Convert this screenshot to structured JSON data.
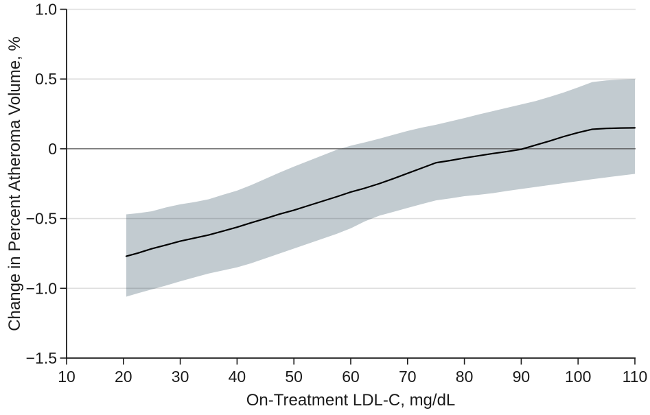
{
  "chart_data": {
    "type": "line",
    "xlabel": "On-Treatment LDL-C, mg/dL",
    "ylabel": "Change in Percent Atheroma Volume, %",
    "xlim": [
      10,
      110
    ],
    "ylim": [
      -1.5,
      1.0
    ],
    "x_tick_values": [
      10,
      20,
      30,
      40,
      50,
      60,
      70,
      80,
      90,
      100,
      110
    ],
    "x_tick_labels": [
      "10",
      "20",
      "30",
      "40",
      "50",
      "60",
      "70",
      "80",
      "90",
      "100",
      "110"
    ],
    "y_tick_values": [
      1.0,
      0.5,
      0,
      -0.5,
      -1.0,
      -1.5
    ],
    "y_tick_labels": [
      "1.0",
      "0.5",
      "0",
      "−0.5",
      "−1.0",
      "−1.5"
    ],
    "gridline_values": [
      1.0,
      0.5,
      -0.5,
      -1.0
    ],
    "zero_line_value": 0,
    "grid_on": true,
    "legend": "none",
    "x": [
      20.5,
      22.5,
      25,
      27.5,
      30,
      32.5,
      35,
      37.5,
      40,
      42.5,
      45,
      47.5,
      50,
      52.5,
      55,
      57.5,
      60,
      62.5,
      65,
      67.5,
      70,
      72.5,
      75,
      77.5,
      80,
      82.5,
      85,
      87.5,
      90,
      92.5,
      95,
      97.5,
      100,
      102.5,
      105,
      107.5,
      110
    ],
    "series": [
      {
        "name": "fitted-change-in-percent-atheroma-volume",
        "values": [
          -0.77,
          -0.748,
          -0.716,
          -0.69,
          -0.662,
          -0.64,
          -0.618,
          -0.59,
          -0.562,
          -0.53,
          -0.5,
          -0.468,
          -0.44,
          -0.408,
          -0.376,
          -0.344,
          -0.31,
          -0.282,
          -0.25,
          -0.214,
          -0.176,
          -0.138,
          -0.1,
          -0.084,
          -0.066,
          -0.05,
          -0.034,
          -0.02,
          -0.004,
          0.026,
          0.056,
          0.088,
          0.116,
          0.14,
          0.146,
          0.149,
          0.15
        ]
      }
    ],
    "band": {
      "name": "confidence-interval",
      "upper": [
        -0.47,
        -0.462,
        -0.448,
        -0.42,
        -0.398,
        -0.382,
        -0.362,
        -0.33,
        -0.3,
        -0.26,
        -0.215,
        -0.17,
        -0.128,
        -0.088,
        -0.048,
        -0.008,
        0.022,
        0.046,
        0.072,
        0.1,
        0.128,
        0.152,
        0.172,
        0.196,
        0.22,
        0.246,
        0.27,
        0.294,
        0.318,
        0.342,
        0.372,
        0.404,
        0.44,
        0.478,
        0.49,
        0.496,
        0.5
      ],
      "lower": [
        -1.06,
        -1.036,
        -1.008,
        -0.98,
        -0.95,
        -0.922,
        -0.894,
        -0.872,
        -0.85,
        -0.82,
        -0.785,
        -0.75,
        -0.715,
        -0.68,
        -0.645,
        -0.61,
        -0.57,
        -0.52,
        -0.48,
        -0.452,
        -0.424,
        -0.396,
        -0.37,
        -0.356,
        -0.34,
        -0.33,
        -0.318,
        -0.302,
        -0.288,
        -0.274,
        -0.26,
        -0.246,
        -0.232,
        -0.218,
        -0.205,
        -0.192,
        -0.18
      ]
    },
    "colors": {
      "band": "#c2cbd0",
      "line": "#000000",
      "grid": "rgba(0,0,0,0.13)",
      "zero_line": "#4d4d4d",
      "axis": "#1a1a1a",
      "text": "#1a1a1a"
    }
  }
}
